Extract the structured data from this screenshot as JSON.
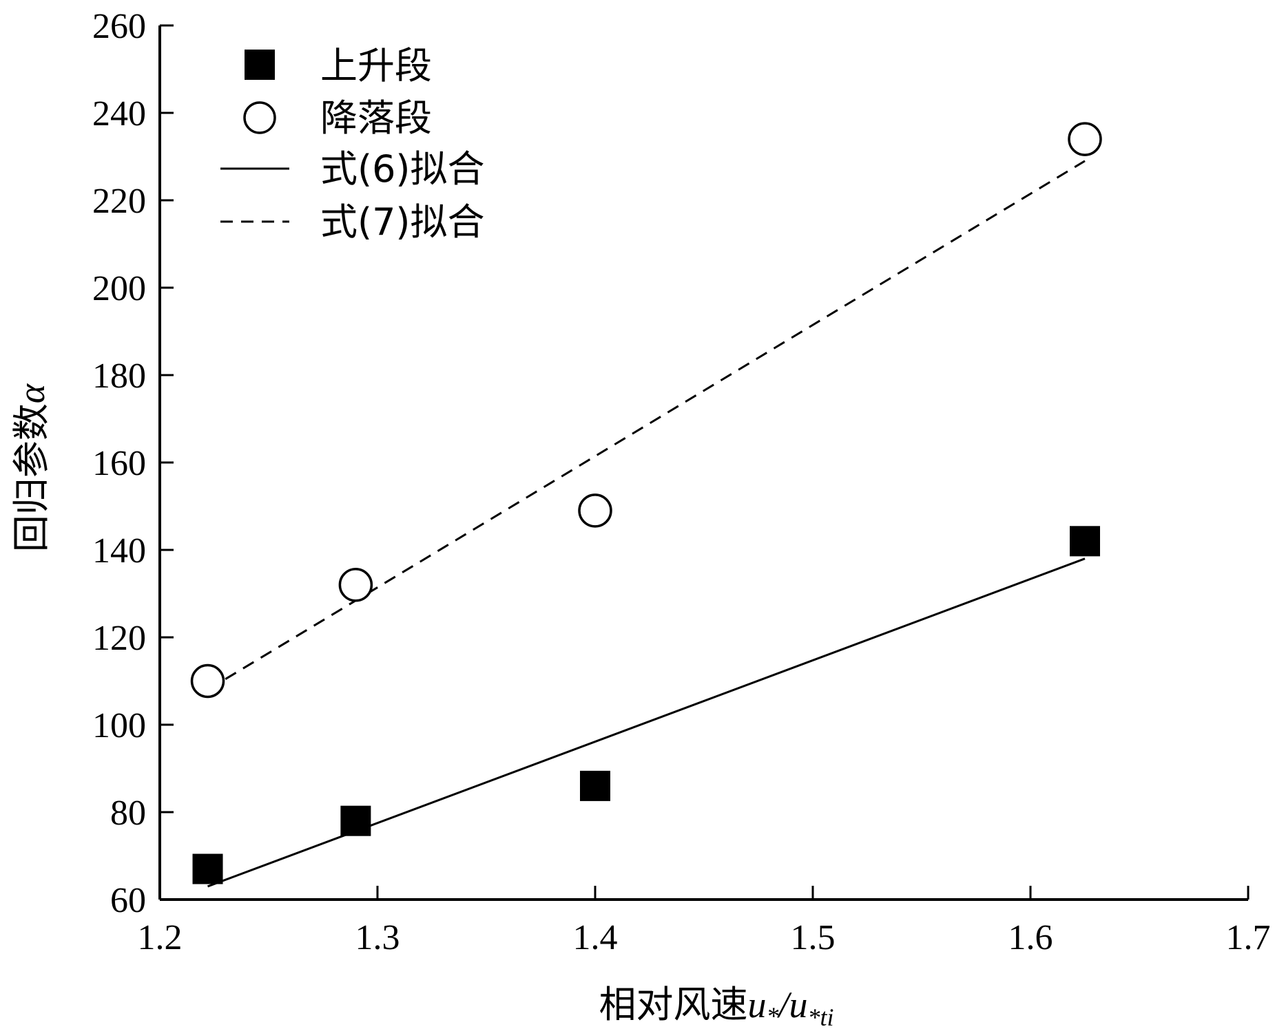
{
  "chart_data": {
    "type": "scatter",
    "xlabel": "相对风速",
    "xlabel_math": {
      "base1": "u",
      "sub1": "*",
      "slash": "/",
      "base2": "u",
      "sub2": "*ti"
    },
    "ylabel": "回归参数",
    "ylabel_symbol": "α",
    "xlim": [
      1.2,
      1.7
    ],
    "ylim": [
      60,
      260
    ],
    "x_ticks": [
      "1.2",
      "1.3",
      "1.4",
      "1.5",
      "1.6",
      "1.7"
    ],
    "y_ticks": [
      "60",
      "80",
      "100",
      "120",
      "140",
      "160",
      "180",
      "200",
      "220",
      "240",
      "260"
    ],
    "legend_position": "top-left",
    "series": [
      {
        "name": "上升段",
        "marker": "filled-square",
        "x": [
          1.222,
          1.29,
          1.4,
          1.625
        ],
        "y": [
          67,
          78,
          86,
          142
        ]
      },
      {
        "name": "降落段",
        "marker": "open-circle",
        "x": [
          1.222,
          1.29,
          1.4,
          1.625
        ],
        "y": [
          110,
          132,
          149,
          234
        ]
      }
    ],
    "fits": [
      {
        "name": "式(6)拟合",
        "style": "solid",
        "x": [
          1.222,
          1.625
        ],
        "y": [
          63,
          138
        ]
      },
      {
        "name": "式(7)拟合",
        "style": "dashed",
        "x": [
          1.222,
          1.625
        ],
        "y": [
          108,
          229
        ]
      }
    ]
  }
}
